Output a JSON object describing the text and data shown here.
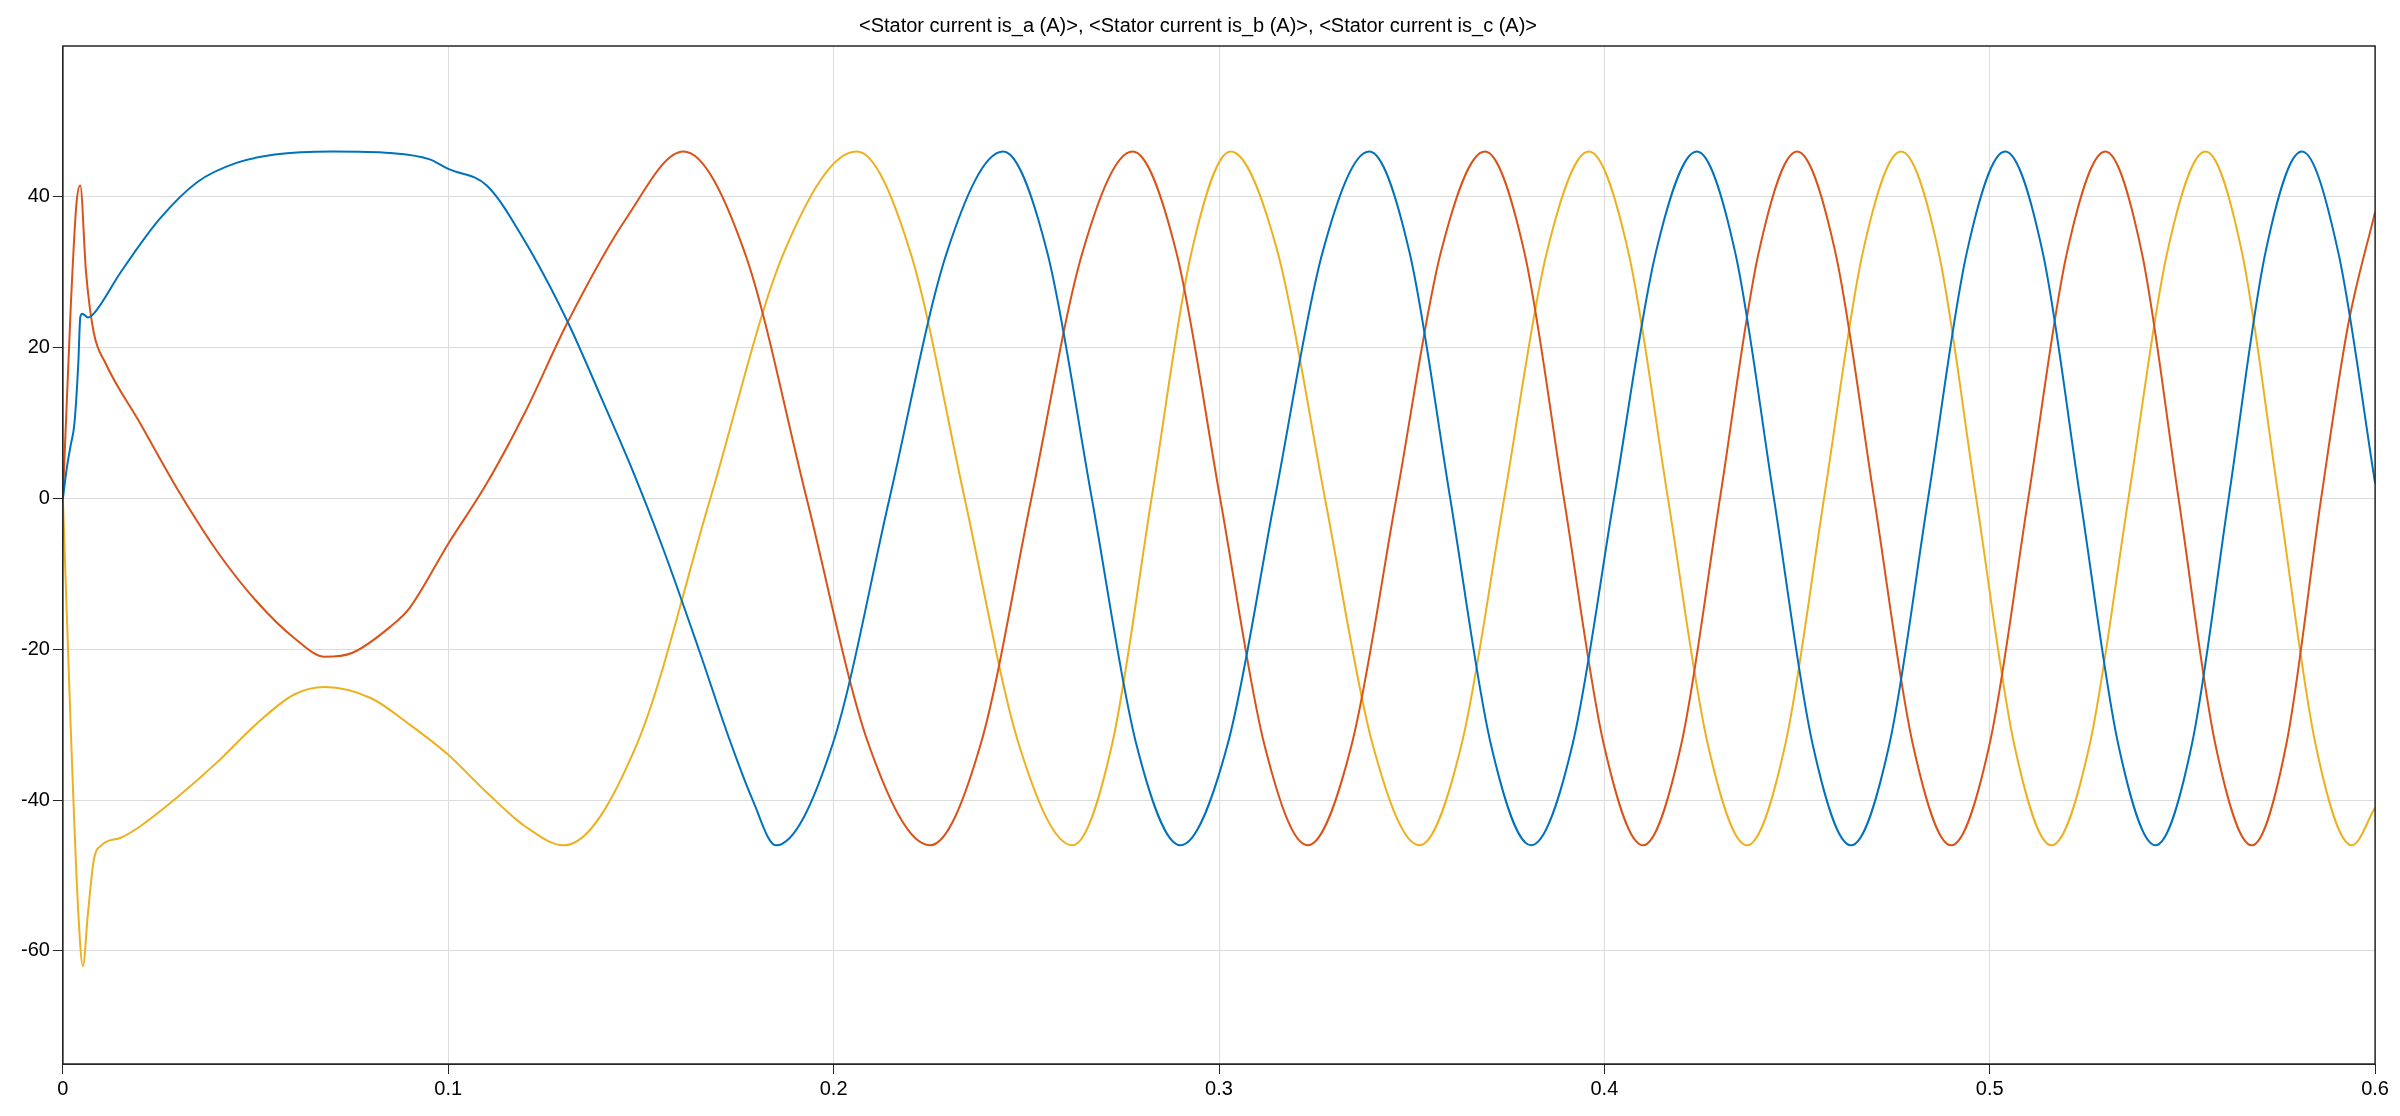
{
  "chart_data": {
    "type": "line",
    "title": "<Stator current is_a (A)>, <Stator current is_b (A)>, <Stator current is_c (A)>",
    "xlim": [
      0,
      0.6
    ],
    "xticks": [
      0,
      0.1,
      0.2,
      0.3,
      0.4,
      0.5,
      0.6
    ],
    "ylim": [
      -75,
      60
    ],
    "yticks": [
      -60,
      -40,
      -20,
      0,
      20,
      40
    ],
    "grid": true,
    "legend": false,
    "marker": "none",
    "line_style": "solid",
    "series": [
      {
        "color": "#0072bd",
        "x": [
          0,
          0.001,
          0.002,
          0.003,
          0.004,
          0.0045,
          0.005,
          0.0065,
          0.008,
          0.015,
          0.025,
          0.035,
          0.045,
          0.055,
          0.07,
          0.085,
          0.095,
          0.1,
          0.11,
          0.12,
          0.131,
          0.14,
          0.148,
          0.156,
          0.165,
          0.173,
          0.179,
          0.185,
          0.1998,
          0.2145,
          0.2293,
          0.244,
          0.2555,
          0.267,
          0.2785,
          0.29,
          0.3023,
          0.3145,
          0.3268,
          0.339,
          0.3495,
          0.36,
          0.3705,
          0.381,
          0.3918,
          0.4025,
          0.4133,
          0.424,
          0.434,
          0.444,
          0.454,
          0.464,
          0.474,
          0.484,
          0.494,
          0.504,
          0.5138,
          0.5235,
          0.5333,
          0.543,
          0.5525,
          0.562,
          0.5715,
          0.581,
          0.5905,
          0.6
        ],
        "values": [
          0,
          4,
          7,
          10,
          18,
          24,
          24.5,
          24,
          24.5,
          30,
          37,
          42,
          44.5,
          45.6,
          46,
          45.8,
          45,
          43.7,
          41.5,
          34,
          23.4,
          13,
          3.5,
          -7,
          -20,
          -32,
          -40,
          -46,
          -32.5,
          0,
          32.5,
          46,
          32.5,
          0,
          -32.5,
          -46,
          -32.5,
          0,
          32.5,
          46,
          32.5,
          0,
          -32.5,
          -46,
          -32.5,
          0,
          32.5,
          46,
          32.5,
          0,
          -32.5,
          -46,
          -32.5,
          0,
          32.5,
          46,
          32.5,
          0,
          -32.5,
          -46,
          -32.5,
          0,
          32.5,
          46,
          32.5,
          2
        ]
      },
      {
        "color": "#d95319",
        "x": [
          0,
          0.002,
          0.0035,
          0.0045,
          0.006,
          0.008,
          0.011,
          0.02,
          0.03,
          0.04,
          0.05,
          0.06,
          0.068,
          0.075,
          0.085,
          0.09,
          0.1,
          0.11,
          0.12,
          0.131,
          0.146,
          0.161,
          0.177,
          0.193,
          0.209,
          0.225,
          0.2382,
          0.2513,
          0.2645,
          0.2776,
          0.289,
          0.3003,
          0.3117,
          0.323,
          0.3345,
          0.346,
          0.3575,
          0.369,
          0.3793,
          0.3895,
          0.3998,
          0.41,
          0.42,
          0.43,
          0.44,
          0.45,
          0.46,
          0.47,
          0.48,
          0.49,
          0.5,
          0.51,
          0.52,
          0.53,
          0.5395,
          0.549,
          0.5585,
          0.568,
          0.577,
          0.586,
          0.593,
          0.6
        ],
        "values": [
          0,
          25,
          39,
          41.5,
          30,
          22,
          18,
          10,
          1,
          -7,
          -13.5,
          -18.5,
          -21,
          -20.5,
          -17,
          -14.5,
          -6,
          2,
          11.5,
          23.4,
          37,
          46,
          32.5,
          0,
          -32.5,
          -46,
          -32.5,
          0,
          32.5,
          46,
          32.5,
          0,
          -32.5,
          -46,
          -32.5,
          0,
          32.5,
          46,
          32.5,
          0,
          -32.5,
          -46,
          -32.5,
          0,
          32.5,
          46,
          32.5,
          0,
          -32.5,
          -46,
          -32.5,
          0,
          32.5,
          46,
          32.5,
          0,
          -32.5,
          -46,
          -32.5,
          0,
          23,
          38
        ]
      },
      {
        "color": "#edb120",
        "x": [
          0,
          0.002,
          0.004,
          0.0052,
          0.0065,
          0.008,
          0.01,
          0.015,
          0.02,
          0.03,
          0.04,
          0.05,
          0.06,
          0.068,
          0.08,
          0.09,
          0.1,
          0.11,
          0.12,
          0.13,
          0.149,
          0.168,
          0.187,
          0.206,
          0.22,
          0.234,
          0.248,
          0.262,
          0.2723,
          0.2825,
          0.2928,
          0.303,
          0.3153,
          0.3275,
          0.3398,
          0.352,
          0.363,
          0.374,
          0.385,
          0.396,
          0.4063,
          0.4165,
          0.4268,
          0.437,
          0.447,
          0.457,
          0.467,
          0.477,
          0.4868,
          0.4965,
          0.5063,
          0.516,
          0.526,
          0.536,
          0.546,
          0.556,
          0.5655,
          0.575,
          0.5845,
          0.594,
          0.6
        ],
        "values": [
          0,
          -30,
          -55,
          -62,
          -55,
          -48,
          -46,
          -45,
          -43.5,
          -39.5,
          -35,
          -30,
          -26,
          -25,
          -26.5,
          -30,
          -34,
          -39,
          -43.5,
          -46,
          -32.5,
          0,
          32.5,
          46,
          32.5,
          0,
          -32.5,
          -46,
          -32.5,
          0,
          32.5,
          46,
          32.5,
          0,
          -32.5,
          -46,
          -32.5,
          0,
          32.5,
          46,
          32.5,
          0,
          -32.5,
          -46,
          -32.5,
          0,
          32.5,
          46,
          32.5,
          0,
          -32.5,
          -46,
          -32.5,
          0,
          32.5,
          46,
          32.5,
          0,
          -32.5,
          -46,
          -41
        ]
      }
    ]
  }
}
